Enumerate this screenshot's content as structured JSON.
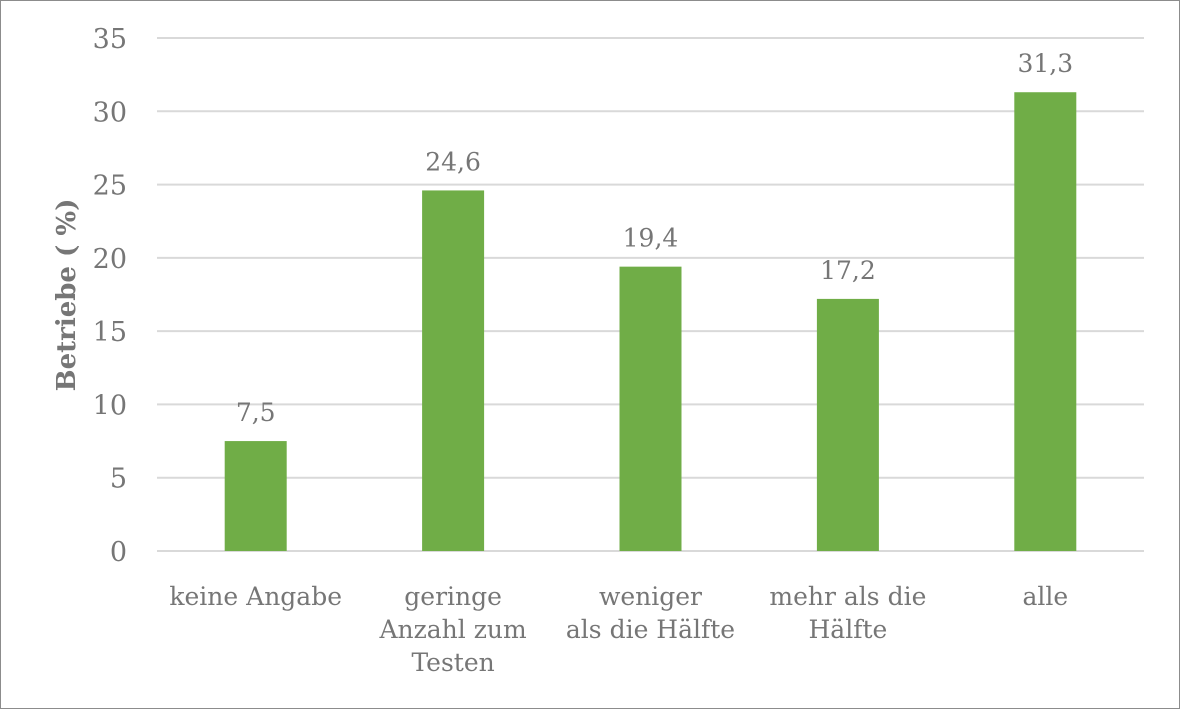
{
  "chart_data": {
    "type": "bar",
    "title": "",
    "xlabel": "",
    "ylabel": "Betriebe ( %)",
    "ylim": [
      0,
      35
    ],
    "yticks": [
      0,
      5,
      10,
      15,
      20,
      25,
      30,
      35
    ],
    "grid": true,
    "categories": [
      [
        "keine Angabe"
      ],
      [
        "geringe",
        "Anzahl zum",
        "Testen"
      ],
      [
        "weniger",
        "als die Hälfte"
      ],
      [
        "mehr als die",
        "Hälfte"
      ],
      [
        "alle"
      ]
    ],
    "values": [
      7.5,
      24.6,
      19.4,
      17.2,
      31.3
    ],
    "data_labels": [
      "7,5",
      "24,6",
      "19,4",
      "17,2",
      "31,3"
    ],
    "bar_color": "#70ad47",
    "grid_color": "#d9d9d9",
    "text_color": "#767676"
  }
}
